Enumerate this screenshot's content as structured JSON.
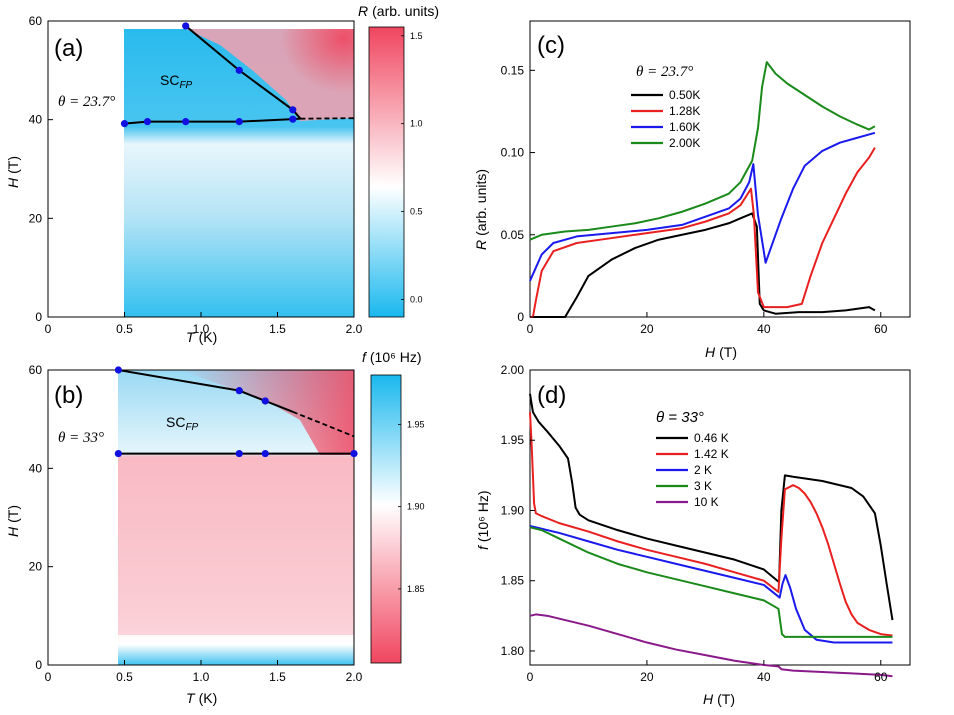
{
  "chart_data": [
    {
      "panel": "(a)",
      "type": "heatmap",
      "xlabel": "T",
      "xunit": "(K)",
      "ylabel": "H",
      "yunit": "(T)",
      "xlim": [
        0,
        2.0
      ],
      "ylim": [
        0,
        60
      ],
      "xticks": [
        "0",
        "0.5",
        "1.0",
        "1.5",
        "2.0"
      ],
      "yticks": [
        "0",
        "20",
        "40",
        "60"
      ],
      "theta_label": "θ = 23.7°",
      "region_label": "SC",
      "region_sub": "FP",
      "colorbar": {
        "title": "R",
        "unit": "(arb. units)",
        "range": [
          -0.1,
          1.55
        ],
        "ticks": [
          "0.0",
          "0.5",
          "1.0",
          "1.5"
        ],
        "low_color": "#1ab8ee",
        "mid_color": "#ffffff",
        "high_color": "#f0465f"
      },
      "upper_boundary": [
        [
          0.9,
          59
        ],
        [
          1.25,
          50
        ],
        [
          1.6,
          42
        ]
      ],
      "lower_boundary": [
        [
          0.5,
          39.2
        ],
        [
          0.65,
          39.6
        ],
        [
          0.9,
          39.6
        ],
        [
          1.25,
          39.6
        ],
        [
          1.6,
          40.1
        ]
      ],
      "dashed_extension": [
        [
          1.65,
          40.2
        ],
        [
          2.0,
          40.3
        ]
      ]
    },
    {
      "panel": "(b)",
      "type": "heatmap",
      "xlabel": "T",
      "xunit": "(K)",
      "ylabel": "H",
      "yunit": "(T)",
      "xlim": [
        0,
        2.0
      ],
      "ylim": [
        0,
        60
      ],
      "xticks": [
        "0",
        "0.5",
        "1.0",
        "1.5",
        "2.0"
      ],
      "yticks": [
        "0",
        "20",
        "40",
        "60"
      ],
      "theta_label": "θ = 33°",
      "region_label": "SC",
      "region_sub": "FP",
      "colorbar": {
        "title": "f",
        "unit": "(10⁶ Hz)",
        "range": [
          1.805,
          1.98
        ],
        "ticks": [
          "1.85",
          "1.90",
          "1.95"
        ],
        "low_color": "#f0465f",
        "mid_color": "#ffffff",
        "high_color": "#1ab8ee"
      },
      "upper_boundary": [
        [
          0.46,
          60
        ],
        [
          1.25,
          55.8
        ],
        [
          1.42,
          53.7
        ]
      ],
      "dashed_extension": [
        [
          1.6,
          51.5
        ],
        [
          2.0,
          46.5
        ]
      ],
      "lower_boundary": [
        [
          0.46,
          43
        ],
        [
          1.25,
          43
        ],
        [
          1.42,
          43
        ],
        [
          2.0,
          43
        ]
      ]
    },
    {
      "panel": "(c)",
      "type": "line",
      "xlabel": "H",
      "xunit": "(T)",
      "ylabel": "R",
      "yunit": "(arb. units)",
      "xlim": [
        0,
        65
      ],
      "ylim": [
        0,
        0.18
      ],
      "xticks": [
        "0",
        "20",
        "40",
        "60"
      ],
      "yticks": [
        "0",
        "0.05",
        "0.10",
        "0.15"
      ],
      "theta_label": "θ = 23.7°",
      "series": [
        {
          "name": "0.50K",
          "color": "#000000",
          "x": [
            0,
            5,
            6,
            8,
            10,
            14,
            18,
            22,
            26,
            30,
            34,
            36,
            38,
            38.8,
            39.3,
            40,
            42,
            46,
            50,
            54,
            58,
            59
          ],
          "y": [
            0,
            0,
            0,
            0.012,
            0.025,
            0.035,
            0.042,
            0.047,
            0.05,
            0.053,
            0.057,
            0.06,
            0.063,
            0.055,
            0.008,
            0.004,
            0.002,
            0.003,
            0.003,
            0.004,
            0.006,
            0.004
          ]
        },
        {
          "name": "1.28K",
          "color": "#e82020",
          "x": [
            0,
            0.5,
            1,
            2,
            4,
            8,
            14,
            20,
            26,
            30,
            34,
            36,
            37.8,
            38.3,
            39,
            40,
            44,
            46.5,
            48,
            50,
            52,
            54,
            56,
            58,
            59
          ],
          "y": [
            0,
            0,
            0.01,
            0.028,
            0.04,
            0.045,
            0.048,
            0.051,
            0.054,
            0.058,
            0.063,
            0.068,
            0.078,
            0.062,
            0.015,
            0.006,
            0.006,
            0.008,
            0.025,
            0.045,
            0.06,
            0.075,
            0.088,
            0.097,
            0.103
          ]
        },
        {
          "name": "1.60K",
          "color": "#1a1aee",
          "x": [
            0,
            1,
            2,
            4,
            8,
            14,
            20,
            26,
            30,
            34,
            36,
            37.5,
            38.2,
            39,
            40.3,
            41,
            43,
            45,
            47,
            50,
            53,
            56,
            59
          ],
          "y": [
            0.022,
            0.03,
            0.038,
            0.045,
            0.049,
            0.051,
            0.053,
            0.056,
            0.061,
            0.066,
            0.072,
            0.082,
            0.093,
            0.062,
            0.033,
            0.04,
            0.06,
            0.078,
            0.092,
            0.101,
            0.106,
            0.109,
            0.112
          ]
        },
        {
          "name": "2.00K",
          "color": "#1a8a1a",
          "x": [
            0,
            2,
            6,
            10,
            14,
            18,
            22,
            26,
            30,
            34,
            36,
            38,
            39,
            39.7,
            40.5,
            42,
            44,
            47,
            50,
            53,
            56,
            58,
            59
          ],
          "y": [
            0.047,
            0.05,
            0.052,
            0.053,
            0.055,
            0.057,
            0.06,
            0.064,
            0.069,
            0.075,
            0.082,
            0.095,
            0.115,
            0.14,
            0.155,
            0.148,
            0.142,
            0.135,
            0.128,
            0.122,
            0.117,
            0.114,
            0.116
          ]
        }
      ]
    },
    {
      "panel": "(d)",
      "type": "line",
      "xlabel": "H",
      "xunit": "(T)",
      "ylabel": "f",
      "yunit": "(10⁶ Hz)",
      "xlim": [
        0,
        65
      ],
      "ylim": [
        1.79,
        2.0
      ],
      "xticks": [
        "0",
        "20",
        "40",
        "60"
      ],
      "yticks": [
        "1.80",
        "1.85",
        "1.90",
        "1.95",
        "2.00"
      ],
      "theta_label": "θ = 33°",
      "series": [
        {
          "name": "0.46 K",
          "color": "#000000",
          "x": [
            0,
            0.5,
            1.5,
            3,
            5,
            6.5,
            7.2,
            7.8,
            8.5,
            10,
            15,
            20,
            25,
            30,
            35,
            40,
            42.6,
            43,
            43.6,
            45,
            50,
            55,
            57,
            59,
            60,
            61,
            62
          ],
          "y": [
            1.983,
            1.97,
            1.963,
            1.956,
            1.946,
            1.937,
            1.92,
            1.902,
            1.897,
            1.893,
            1.886,
            1.88,
            1.875,
            1.87,
            1.865,
            1.858,
            1.849,
            1.9,
            1.925,
            1.924,
            1.921,
            1.916,
            1.91,
            1.898,
            1.875,
            1.848,
            1.822
          ]
        },
        {
          "name": "1.42 K",
          "color": "#e82020",
          "x": [
            0,
            0.3,
            0.7,
            1,
            2,
            5,
            10,
            15,
            20,
            25,
            30,
            35,
            40,
            42.5,
            43,
            43.6,
            45,
            46,
            47,
            48,
            49,
            50,
            51,
            52,
            53,
            54,
            55,
            56,
            58,
            60,
            62
          ],
          "y": [
            1.97,
            1.945,
            1.905,
            1.898,
            1.896,
            1.891,
            1.885,
            1.878,
            1.872,
            1.867,
            1.862,
            1.856,
            1.85,
            1.842,
            1.88,
            1.915,
            1.918,
            1.916,
            1.912,
            1.906,
            1.898,
            1.888,
            1.876,
            1.862,
            1.848,
            1.835,
            1.826,
            1.82,
            1.815,
            1.812,
            1.811
          ]
        },
        {
          "name": "2 K",
          "color": "#1a1aee",
          "x": [
            0,
            2,
            5,
            10,
            15,
            20,
            25,
            30,
            35,
            40,
            42.7,
            43.2,
            43.7,
            44.5,
            45.5,
            47,
            49,
            52,
            55,
            58,
            62
          ],
          "y": [
            1.889,
            1.887,
            1.884,
            1.878,
            1.872,
            1.867,
            1.862,
            1.857,
            1.852,
            1.847,
            1.838,
            1.848,
            1.854,
            1.845,
            1.83,
            1.815,
            1.808,
            1.806,
            1.806,
            1.806,
            1.806
          ]
        },
        {
          "name": "3 K",
          "color": "#1a8a1a",
          "x": [
            0,
            2,
            5,
            10,
            15,
            20,
            25,
            30,
            35,
            40,
            42.5,
            43.1,
            43.6,
            45,
            50,
            55,
            60,
            62
          ],
          "y": [
            1.888,
            1.886,
            1.88,
            1.87,
            1.862,
            1.856,
            1.851,
            1.846,
            1.841,
            1.836,
            1.83,
            1.812,
            1.81,
            1.81,
            1.81,
            1.81,
            1.81,
            1.81
          ]
        },
        {
          "name": "10 K",
          "color": "#8a1a8a",
          "x": [
            0,
            1,
            3,
            6,
            10,
            15,
            20,
            25,
            30,
            35,
            40,
            42.5,
            43,
            45,
            50,
            55,
            60,
            62
          ],
          "y": [
            1.825,
            1.826,
            1.825,
            1.822,
            1.818,
            1.812,
            1.806,
            1.801,
            1.797,
            1.793,
            1.79,
            1.789,
            1.787,
            1.786,
            1.785,
            1.784,
            1.783,
            1.782
          ]
        }
      ]
    }
  ]
}
